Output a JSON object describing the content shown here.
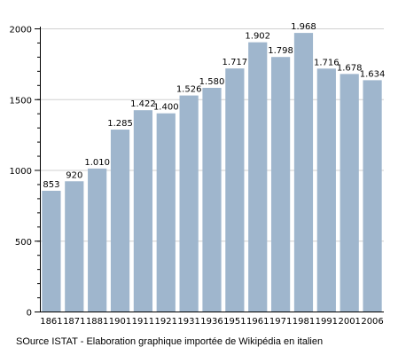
{
  "chart_data": {
    "type": "bar",
    "categories": [
      "1861",
      "1871",
      "1881",
      "1901",
      "1911",
      "1921",
      "1931",
      "1936",
      "1951",
      "1961",
      "1971",
      "1981",
      "1991",
      "2001",
      "2006"
    ],
    "values": [
      853,
      920,
      1010,
      1285,
      1422,
      1400,
      1526,
      1580,
      1717,
      1902,
      1798,
      1968,
      1716,
      1678,
      1634
    ],
    "value_labels": [
      "853",
      "920",
      "1.010",
      "1.285",
      "1.422",
      "1.400",
      "1.526",
      "1.580",
      "1.717",
      "1.902",
      "1.798",
      "1.968",
      "1.716",
      "1.678",
      "1.634"
    ],
    "title": "",
    "xlabel": "",
    "ylabel": "",
    "ylim": [
      0,
      2000
    ],
    "yticks": [
      0,
      500,
      1000,
      1500,
      2000
    ],
    "ytick_labels": [
      "0",
      "500",
      "1000",
      "1500",
      "2000"
    ],
    "minor_step": 100,
    "grid": true,
    "bar_color": "#9fb6cd",
    "grid_color": "#d0d0d0"
  },
  "source_note": "SOurce ISTAT - Elaboration graphique importée de Wikipédia en italien"
}
